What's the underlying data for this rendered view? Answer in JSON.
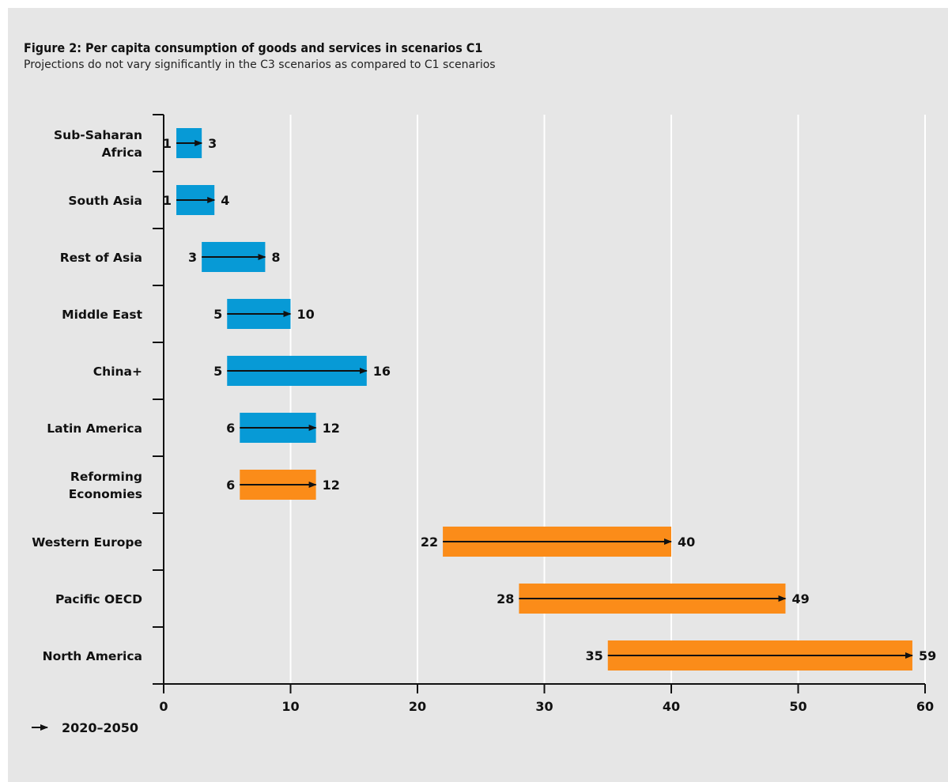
{
  "title": "Figure 2: Per capita consumption of goods and services in scenarios C1",
  "subtitle": "Projections do not vary significantly in the C3 scenarios as compared to C1 scenarios",
  "colors": {
    "background": "#e6e6e6",
    "blue": "#079ad6",
    "orange": "#fb8c19",
    "ink": "#111111"
  },
  "chart_data": {
    "type": "bar",
    "orientation": "horizontal",
    "title": "Figure 2: Per capita consumption of goods and services in scenarios C1",
    "subtitle": "Projections do not vary significantly in the C3 scenarios as compared to C1 scenarios",
    "xlim": [
      0,
      60
    ],
    "xticks": [
      0,
      10,
      20,
      30,
      40,
      50,
      60
    ],
    "grid": "vertical",
    "legend": {
      "label": "2020–2050",
      "placement": "bottom-left"
    },
    "series": [
      {
        "region": [
          "Sub-Saharan",
          "Africa"
        ],
        "start": 1,
        "end": 3,
        "color": "blue"
      },
      {
        "region": [
          "South Asia"
        ],
        "start": 1,
        "end": 4,
        "color": "blue"
      },
      {
        "region": [
          "Rest of Asia"
        ],
        "start": 3,
        "end": 8,
        "color": "blue"
      },
      {
        "region": [
          "Middle East"
        ],
        "start": 5,
        "end": 10,
        "color": "blue"
      },
      {
        "region": [
          "China+"
        ],
        "start": 5,
        "end": 16,
        "color": "blue"
      },
      {
        "region": [
          "Latin America"
        ],
        "start": 6,
        "end": 12,
        "color": "blue"
      },
      {
        "region": [
          "Reforming",
          "Economies"
        ],
        "start": 6,
        "end": 12,
        "color": "orange"
      },
      {
        "region": [
          "Western Europe"
        ],
        "start": 22,
        "end": 40,
        "color": "orange"
      },
      {
        "region": [
          "Pacific OECD"
        ],
        "start": 28,
        "end": 49,
        "color": "orange"
      },
      {
        "region": [
          "North America"
        ],
        "start": 35,
        "end": 59,
        "color": "orange"
      }
    ]
  }
}
